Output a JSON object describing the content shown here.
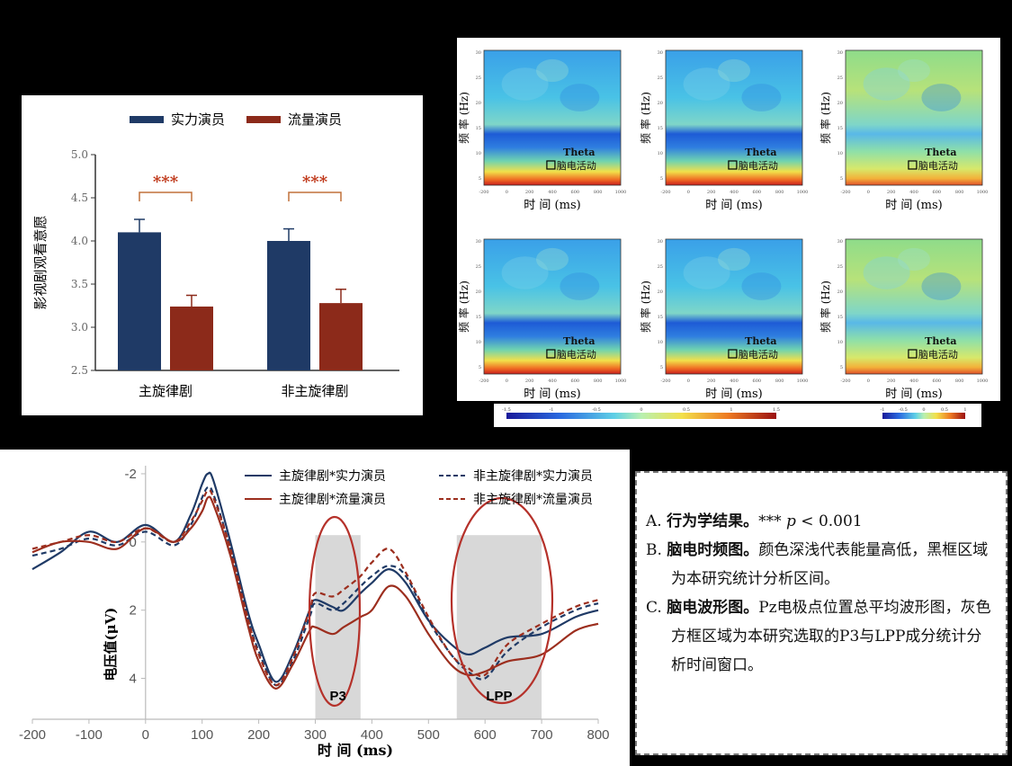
{
  "chart_data": [
    {
      "id": "A",
      "type": "bar",
      "ylabel": "影视剧观看意愿",
      "ylim": [
        2.5,
        5.0
      ],
      "yticks": [
        "2.5",
        "3.0",
        "3.5",
        "4.0",
        "4.5",
        "5.0"
      ],
      "categories": [
        "主旋律剧",
        "非主旋律剧"
      ],
      "series": [
        {
          "name": "实力演员",
          "color": "#1f3a66",
          "values": [
            4.1,
            4.0
          ],
          "errors": [
            0.15,
            0.14
          ]
        },
        {
          "name": "流量演员",
          "color": "#8c2a1a",
          "values": [
            3.24,
            3.28
          ],
          "errors": [
            0.13,
            0.16
          ]
        }
      ],
      "significance": [
        "***",
        "***"
      ],
      "legend_position": "top"
    },
    {
      "id": "B",
      "type": "heatmap",
      "xlabel": "时 间 (ms)",
      "ylabel": "频 率 (Hz)",
      "xticks": [
        "-200",
        "0",
        "200",
        "400",
        "600",
        "800",
        "1000"
      ],
      "yticks": [
        "30",
        "25",
        "20",
        "15",
        "10",
        "5"
      ],
      "roi_label": "Theta",
      "roi_legend": "脑电活动",
      "colorbar_ticks_left": [
        "-1.5",
        "-1",
        "-0.5",
        "0",
        "0.5",
        "1",
        "1.5"
      ],
      "colorbar_ticks_right": [
        "-1",
        "-0.5",
        "0",
        "0.5",
        "1"
      ],
      "panels": [
        {
          "row": 0,
          "col": 0,
          "style": "cool"
        },
        {
          "row": 0,
          "col": 1,
          "style": "cool"
        },
        {
          "row": 0,
          "col": 2,
          "style": "warm"
        },
        {
          "row": 1,
          "col": 0,
          "style": "cool"
        },
        {
          "row": 1,
          "col": 1,
          "style": "cool"
        },
        {
          "row": 1,
          "col": 2,
          "style": "warm"
        }
      ]
    },
    {
      "id": "C",
      "type": "line",
      "xlabel": "时 间 (ms)",
      "ylabel": "电压值(μV)",
      "xlim": [
        -200,
        800
      ],
      "ylim": [
        -2.5,
        5.2
      ],
      "y_inverted": true,
      "xticks": [
        "-200",
        "-100",
        "0",
        "100",
        "200",
        "300",
        "400",
        "500",
        "600",
        "700",
        "800"
      ],
      "yticks": [
        "-2",
        "0",
        "2",
        "4"
      ],
      "windows": [
        {
          "name": "P3",
          "x_range": [
            300,
            380
          ]
        },
        {
          "name": "LPP",
          "x_range": [
            550,
            700
          ]
        }
      ],
      "x": [
        -200,
        -150,
        -100,
        -50,
        0,
        50,
        80,
        100,
        110,
        120,
        150,
        180,
        200,
        230,
        260,
        290,
        300,
        330,
        350,
        380,
        400,
        430,
        460,
        500,
        540,
        570,
        600,
        640,
        700,
        760,
        800
      ],
      "series": [
        {
          "name": "主旋律剧*实力演员",
          "color": "#1f3a66",
          "dash": false,
          "values": [
            0.8,
            0.3,
            -0.3,
            0.0,
            -0.5,
            0.0,
            -0.8,
            -1.7,
            -2.0,
            -1.8,
            0.0,
            2.0,
            3.0,
            4.1,
            3.3,
            2.0,
            1.7,
            1.9,
            2.0,
            1.5,
            1.2,
            0.8,
            1.2,
            2.3,
            3.0,
            3.3,
            3.1,
            2.8,
            2.7,
            2.2,
            2.0
          ]
        },
        {
          "name": "非主旋律剧*实力演员",
          "color": "#1f3a66",
          "dash": true,
          "values": [
            0.4,
            0.2,
            -0.1,
            0.1,
            -0.3,
            0.1,
            -0.5,
            -1.3,
            -1.6,
            -1.4,
            0.2,
            2.2,
            3.2,
            4.2,
            3.5,
            2.2,
            1.8,
            2.0,
            1.8,
            1.3,
            1.0,
            0.7,
            1.0,
            2.3,
            3.3,
            3.8,
            4.0,
            3.2,
            2.5,
            2.0,
            1.8
          ]
        },
        {
          "name": "主旋律剧*流量演员",
          "color": "#9c2e1e",
          "dash": false,
          "values": [
            0.3,
            0.0,
            0.0,
            0.2,
            -0.4,
            0.0,
            -0.4,
            -0.9,
            -1.3,
            -1.1,
            0.4,
            2.4,
            3.5,
            4.3,
            3.6,
            2.6,
            2.5,
            2.7,
            2.5,
            2.2,
            2.0,
            1.3,
            1.6,
            2.7,
            3.6,
            3.9,
            3.8,
            3.5,
            3.3,
            2.6,
            2.4
          ]
        },
        {
          "name": "非主旋律剧*流量演员",
          "color": "#9c2e1e",
          "dash": true,
          "values": [
            0.2,
            0.0,
            -0.2,
            0.0,
            -0.4,
            0.0,
            -0.6,
            -1.2,
            -1.5,
            -1.3,
            0.2,
            2.2,
            3.3,
            4.2,
            3.4,
            2.0,
            1.5,
            1.6,
            1.4,
            1.0,
            0.6,
            0.2,
            0.9,
            2.2,
            3.3,
            3.7,
            3.9,
            3.0,
            2.4,
            1.9,
            1.7
          ]
        }
      ]
    }
  ],
  "notes": {
    "a_label": "A.",
    "a_title": "行为学结果。",
    "a_text_pre": "*** ",
    "a_text_p": "p",
    "a_text_post": " < 0.001",
    "b_label": "B.",
    "b_title": "脑电时频图。",
    "b_text": "颜色深浅代表能量高低，黑框区域为本研究统计分析区间。",
    "c_label": "C.",
    "c_title": "脑电波形图。",
    "c_text": "Pz电极点位置总平均波形图，灰色方框区域为本研究选取的P3与LPP成分统计分析时间窗口。"
  }
}
